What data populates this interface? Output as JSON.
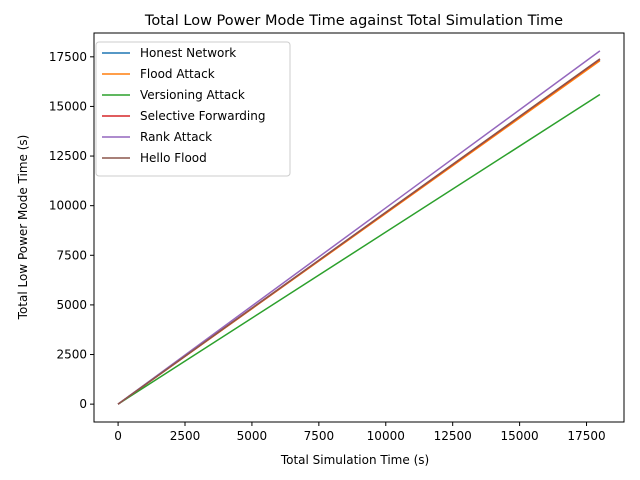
{
  "chart_data": {
    "type": "line",
    "title": "Total Low Power Mode Time against Total Simulation Time",
    "xlabel": "Total Simulation Time (s)",
    "ylabel": "Total Low Power Mode Time (s)",
    "xlim": [
      -900,
      18900
    ],
    "ylim": [
      -900,
      18700
    ],
    "x_ticks": [
      0,
      2500,
      5000,
      7500,
      10000,
      12500,
      15000,
      17500
    ],
    "y_ticks": [
      0,
      2500,
      5000,
      7500,
      10000,
      12500,
      15000,
      17500
    ],
    "grid": false,
    "legend_position": "upper-left",
    "series": [
      {
        "name": "Honest Network",
        "color": "#1f77b4",
        "x": [
          0,
          18000
        ],
        "y": [
          0,
          17350
        ]
      },
      {
        "name": "Flood Attack",
        "color": "#ff7f0e",
        "x": [
          0,
          18000
        ],
        "y": [
          0,
          17300
        ]
      },
      {
        "name": "Versioning Attack",
        "color": "#2ca02c",
        "x": [
          0,
          18000
        ],
        "y": [
          0,
          15600
        ]
      },
      {
        "name": "Selective Forwarding",
        "color": "#d62728",
        "x": [
          0,
          18000
        ],
        "y": [
          0,
          17380
        ]
      },
      {
        "name": "Rank Attack",
        "color": "#9467bd",
        "x": [
          0,
          18000
        ],
        "y": [
          0,
          17800
        ]
      },
      {
        "name": "Hello Flood",
        "color": "#8c564b",
        "x": [
          0,
          18000
        ],
        "y": [
          0,
          17400
        ]
      }
    ]
  }
}
